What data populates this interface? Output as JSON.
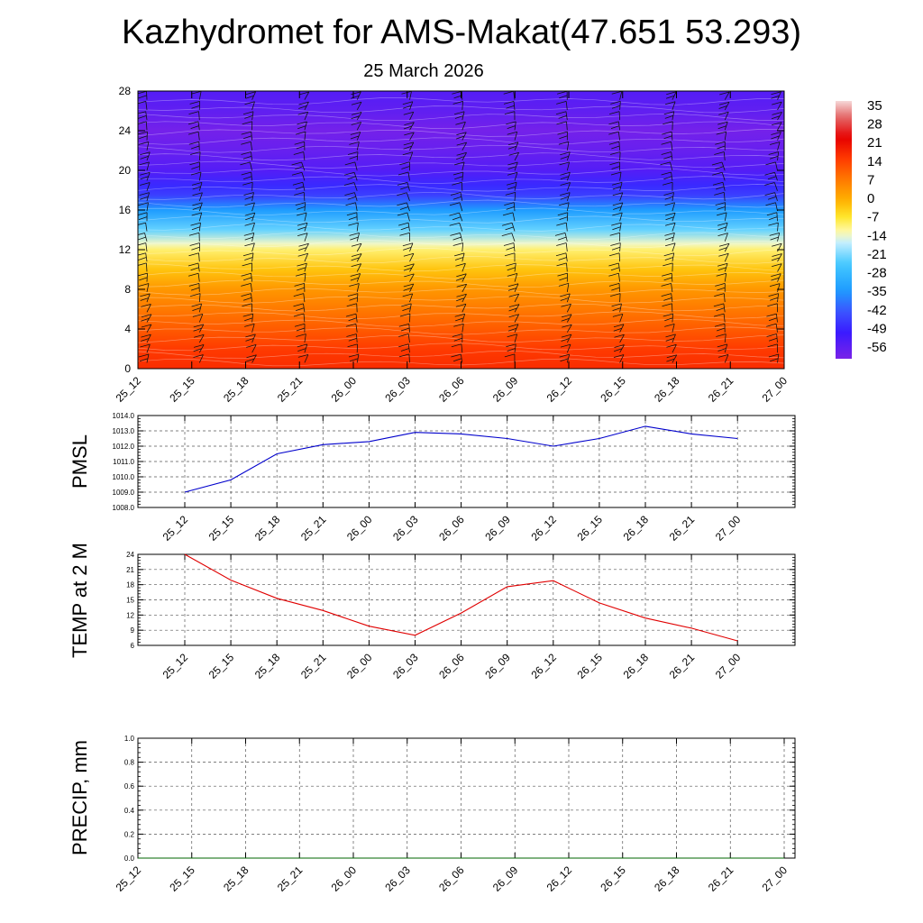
{
  "title": "Kazhydromet for AMS-Makat(47.651 53.293)",
  "subtitle": "25 March 2026",
  "chart_data": [
    {
      "type": "heatmap",
      "name": "upper-air cross section with wind barbs",
      "x_ticks": [
        "25_12",
        "25_15",
        "25_18",
        "25_21",
        "26_00",
        "26_03",
        "26_06",
        "26_09",
        "26_12",
        "26_15",
        "26_18",
        "26_21",
        "27_00"
      ],
      "y_ticks": [
        0,
        4,
        8,
        12,
        16,
        20,
        24,
        28
      ],
      "ylim": [
        0,
        28
      ],
      "colorbar_labels": [
        35,
        28,
        21,
        14,
        7,
        0,
        -7,
        -14,
        -21,
        -28,
        -35,
        -42,
        -49,
        -56
      ],
      "colorbar_range": [
        -60,
        38
      ],
      "colormap_anchors": [
        {
          "value": -60,
          "color": "#7a22e8"
        },
        {
          "value": -50,
          "color": "#3a1aff"
        },
        {
          "value": -42,
          "color": "#3b55ff"
        },
        {
          "value": -34,
          "color": "#1e9cff"
        },
        {
          "value": -24,
          "color": "#44c8ff"
        },
        {
          "value": -16,
          "color": "#c2eeff"
        },
        {
          "value": -12,
          "color": "#fffab4"
        },
        {
          "value": -6,
          "color": "#ffe62b"
        },
        {
          "value": 0,
          "color": "#ffb300"
        },
        {
          "value": 8,
          "color": "#ff7a00"
        },
        {
          "value": 16,
          "color": "#ff3b00"
        },
        {
          "value": 24,
          "color": "#e60000"
        },
        {
          "value": 32,
          "color": "#e46a6a"
        },
        {
          "value": 38,
          "color": "#f6d8d8"
        }
      ],
      "temperature_profile": [
        {
          "h": 0,
          "t": 18
        },
        {
          "h": 2,
          "t": 16
        },
        {
          "h": 4,
          "t": 12
        },
        {
          "h": 6,
          "t": 8
        },
        {
          "h": 8,
          "t": 4
        },
        {
          "h": 10,
          "t": -2
        },
        {
          "h": 12,
          "t": -9
        },
        {
          "h": 12.6,
          "t": -13
        },
        {
          "h": 14,
          "t": -22
        },
        {
          "h": 16,
          "t": -34
        },
        {
          "h": 17.5,
          "t": -45
        },
        {
          "h": 18.5,
          "t": -48
        },
        {
          "h": 20,
          "t": -54
        },
        {
          "h": 22,
          "t": -57
        },
        {
          "h": 24,
          "t": -59
        },
        {
          "h": 26,
          "t": -56
        },
        {
          "h": 28,
          "t": -54
        }
      ]
    },
    {
      "type": "line",
      "ylabel": "PMSL",
      "x": [
        "25_12",
        "25_15",
        "25_18",
        "25_21",
        "26_00",
        "26_03",
        "26_06",
        "26_09",
        "26_12",
        "26_15",
        "26_18",
        "26_21",
        "27_00"
      ],
      "ylim": [
        1008.0,
        1014.0
      ],
      "y_ticks": [
        "1008.0",
        "1009.0",
        "1010.0",
        "1011.0",
        "1012.0",
        "1013.0",
        "1014.0"
      ],
      "series": [
        {
          "values": [
            1009.0,
            1009.8,
            1011.5,
            1012.1,
            1012.3,
            1012.9,
            1012.8,
            1012.5,
            1012.0,
            1012.5,
            1013.3,
            1012.8,
            1012.5
          ],
          "color": "#0000cc"
        }
      ]
    },
    {
      "type": "line",
      "ylabel": "TEMP at 2 M",
      "x": [
        "25_12",
        "25_15",
        "25_18",
        "25_21",
        "26_00",
        "26_03",
        "26_06",
        "26_09",
        "26_12",
        "26_15",
        "26_18",
        "26_21",
        "27_00"
      ],
      "ylim": [
        6,
        24
      ],
      "y_ticks": [
        "6",
        "9",
        "12",
        "15",
        "18",
        "21",
        "24"
      ],
      "series": [
        {
          "values": [
            24.0,
            18.9,
            15.3,
            12.9,
            9.8,
            8.0,
            12.4,
            17.6,
            18.8,
            14.4,
            11.4,
            9.4,
            6.9
          ],
          "color": "#e00000"
        }
      ]
    },
    {
      "type": "line",
      "ylabel": "PRECIP, mm",
      "x": [
        "25_12",
        "25_15",
        "25_18",
        "25_21",
        "26_00",
        "26_03",
        "26_06",
        "26_09",
        "26_12",
        "26_15",
        "26_18",
        "26_21",
        "27_00"
      ],
      "ylim": [
        0.0,
        1.0
      ],
      "y_ticks": [
        "0.0",
        "0.2",
        "0.4",
        "0.6",
        "0.8",
        "1.0"
      ],
      "series": [
        {
          "values": [
            0,
            0,
            0,
            0,
            0,
            0,
            0,
            0,
            0,
            0,
            0,
            0,
            0
          ],
          "color": "#006400"
        }
      ]
    }
  ]
}
